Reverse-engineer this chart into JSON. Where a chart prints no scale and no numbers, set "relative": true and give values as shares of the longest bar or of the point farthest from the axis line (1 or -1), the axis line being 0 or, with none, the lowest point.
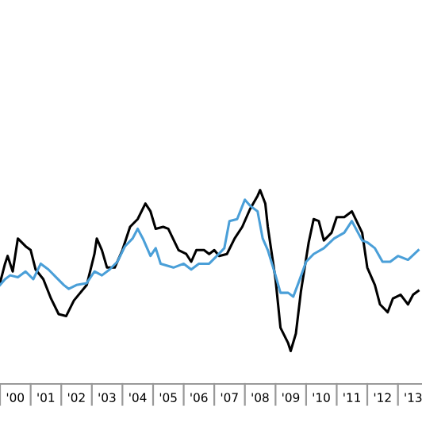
{
  "chart_data": {
    "type": "line",
    "relative": true,
    "xlim": [
      "2000-01",
      "2013-10-15"
    ],
    "xticks": [
      {
        "value": "2000-01",
        "label": null
      },
      {
        "value": "2000-07",
        "label": "'00"
      },
      {
        "value": "2001-01",
        "label": null
      },
      {
        "value": "2001-07",
        "label": "'01"
      },
      {
        "value": "2002-01",
        "label": null
      },
      {
        "value": "2002-07",
        "label": "'02"
      },
      {
        "value": "2003-01",
        "label": null
      },
      {
        "value": "2003-07",
        "label": "'03"
      },
      {
        "value": "2004-01",
        "label": null
      },
      {
        "value": "2004-07",
        "label": "'04"
      },
      {
        "value": "2005-01",
        "label": null
      },
      {
        "value": "2005-07",
        "label": "'05"
      },
      {
        "value": "2006-01",
        "label": null
      },
      {
        "value": "2006-07",
        "label": "'06"
      },
      {
        "value": "2007-01",
        "label": null
      },
      {
        "value": "2007-07",
        "label": "'07"
      },
      {
        "value": "2008-01",
        "label": null
      },
      {
        "value": "2008-07",
        "label": "'08"
      },
      {
        "value": "2009-01",
        "label": null
      },
      {
        "value": "2009-07",
        "label": "'09"
      },
      {
        "value": "2010-01",
        "label": null
      },
      {
        "value": "2010-07",
        "label": "'10"
      },
      {
        "value": "2011-01",
        "label": null
      },
      {
        "value": "2011-07",
        "label": "'11"
      },
      {
        "value": "2012-01",
        "label": null
      },
      {
        "value": "2012-07",
        "label": "'12"
      },
      {
        "value": "2013-01",
        "label": null
      },
      {
        "value": "2013-07",
        "label": "'13"
      }
    ],
    "grid": false,
    "marker": "none",
    "line_style": "solid",
    "series": [
      {
        "color": "#000000",
        "x": [
          "2000-01",
          "2000-03",
          "2000-04",
          "2000-06",
          "2000-08",
          "2000-11",
          "2001-01",
          "2001-03",
          "2001-06",
          "2001-09",
          "2001-12",
          "2002-03",
          "2002-06",
          "2002-11",
          "2003-02",
          "2003-03",
          "2003-05",
          "2003-07",
          "2003-10",
          "2004-01",
          "2004-04",
          "2004-07",
          "2004-10",
          "2004-12",
          "2005-02",
          "2005-05",
          "2005-07",
          "2005-11",
          "2006-02",
          "2006-04",
          "2006-06",
          "2006-09",
          "2006-11",
          "2007-01",
          "2007-03",
          "2007-06",
          "2007-09",
          "2007-12",
          "2008-03",
          "2008-06",
          "2008-07",
          "2008-09",
          "2008-10",
          "2009-01",
          "2009-03",
          "2009-06",
          "2009-07",
          "2009-09",
          "2009-11",
          "2010-02",
          "2010-04",
          "2010-06",
          "2010-08",
          "2010-11",
          "2011-01",
          "2011-04",
          "2011-07",
          "2011-11",
          "2012-01",
          "2012-04",
          "2012-06",
          "2012-09",
          "2012-11",
          "2013-02",
          "2013-05",
          "2013-07",
          "2013-09"
        ],
        "values": [
          0.52,
          0.62,
          0.66,
          0.58,
          0.75,
          0.71,
          0.69,
          0.59,
          0.54,
          0.44,
          0.36,
          0.35,
          0.43,
          0.51,
          0.67,
          0.75,
          0.69,
          0.6,
          0.6,
          0.69,
          0.81,
          0.85,
          0.93,
          0.89,
          0.8,
          0.81,
          0.8,
          0.69,
          0.67,
          0.63,
          0.69,
          0.69,
          0.67,
          0.69,
          0.66,
          0.67,
          0.75,
          0.81,
          0.9,
          0.97,
          1.0,
          0.93,
          0.81,
          0.54,
          0.29,
          0.21,
          0.17,
          0.26,
          0.48,
          0.73,
          0.85,
          0.84,
          0.74,
          0.78,
          0.86,
          0.86,
          0.89,
          0.78,
          0.6,
          0.51,
          0.41,
          0.37,
          0.44,
          0.46,
          0.41,
          0.46,
          0.48
        ]
      },
      {
        "color": "#4a9fd8",
        "x": [
          "2000-01",
          "2000-03",
          "2000-05",
          "2000-08",
          "2000-11",
          "2001-02",
          "2001-05",
          "2001-08",
          "2001-11",
          "2002-02",
          "2002-04",
          "2002-07",
          "2002-11",
          "2003-02",
          "2003-05",
          "2003-08",
          "2003-11",
          "2004-02",
          "2004-05",
          "2004-07",
          "2004-09",
          "2004-12",
          "2005-02",
          "2005-04",
          "2005-09",
          "2006-01",
          "2006-04",
          "2006-07",
          "2006-11",
          "2007-02",
          "2007-05",
          "2007-07",
          "2007-10",
          "2008-01",
          "2008-03",
          "2008-06",
          "2008-08",
          "2008-10",
          "2009-01",
          "2009-03",
          "2009-06",
          "2009-08",
          "2009-10",
          "2010-01",
          "2010-04",
          "2010-08",
          "2010-12",
          "2011-04",
          "2011-07",
          "2011-11",
          "2012-01",
          "2012-04",
          "2012-07",
          "2012-10",
          "2013-01",
          "2013-05",
          "2013-09"
        ],
        "values": [
          0.51,
          0.54,
          0.56,
          0.55,
          0.58,
          0.54,
          0.62,
          0.59,
          0.55,
          0.51,
          0.49,
          0.51,
          0.52,
          0.58,
          0.56,
          0.59,
          0.63,
          0.71,
          0.75,
          0.8,
          0.75,
          0.66,
          0.7,
          0.62,
          0.6,
          0.62,
          0.59,
          0.62,
          0.62,
          0.66,
          0.7,
          0.84,
          0.85,
          0.95,
          0.92,
          0.89,
          0.75,
          0.69,
          0.56,
          0.47,
          0.47,
          0.45,
          0.52,
          0.63,
          0.67,
          0.7,
          0.75,
          0.78,
          0.84,
          0.74,
          0.73,
          0.7,
          0.63,
          0.63,
          0.66,
          0.64,
          0.69
        ]
      }
    ]
  }
}
